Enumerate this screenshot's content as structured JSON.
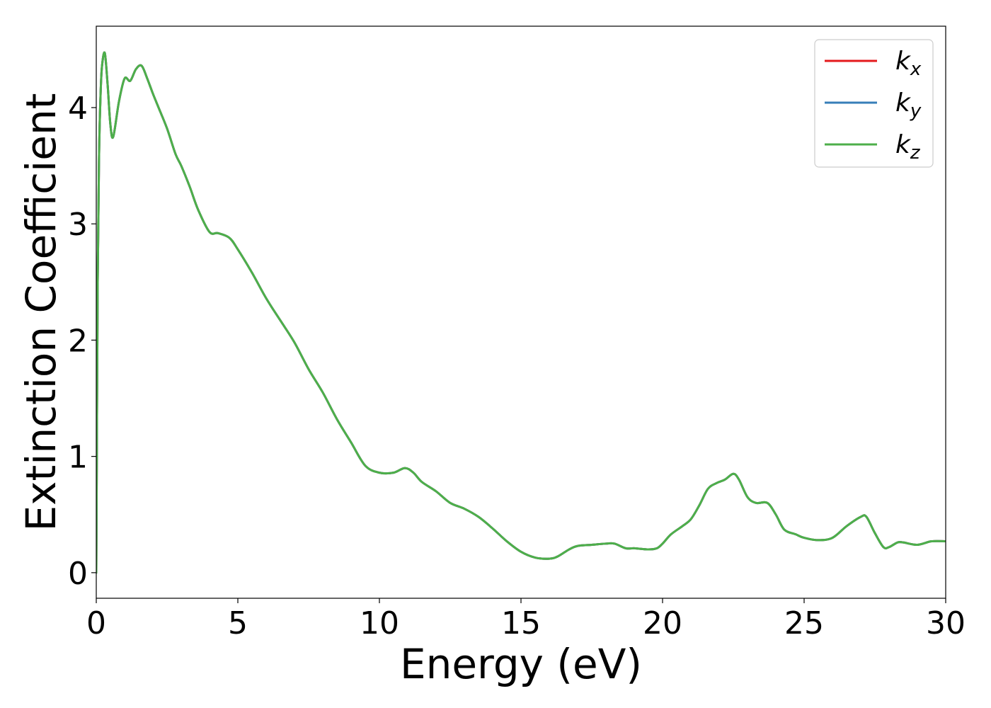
{
  "chart_data": {
    "type": "line",
    "title": "",
    "xlabel": "Energy (eV)",
    "ylabel": "Extinction Coefficient",
    "xlim": [
      0,
      30
    ],
    "ylim": [
      -0.22,
      4.7
    ],
    "xticks": [
      0,
      5,
      10,
      15,
      20,
      25,
      30
    ],
    "yticks": [
      0,
      1,
      2,
      3,
      4
    ],
    "grid": false,
    "legend_position": "top-right",
    "series": [
      {
        "name": "k",
        "subscript": "x",
        "color": "#e41a1c",
        "x": [
          0,
          0.05,
          0.1,
          0.15,
          0.2,
          0.3,
          0.4,
          0.5,
          0.6,
          0.8,
          1.0,
          1.2,
          1.4,
          1.6,
          1.8,
          2.0,
          2.2,
          2.5,
          2.8,
          3.0,
          3.3,
          3.6,
          4.0,
          4.3,
          4.7,
          5.0,
          5.5,
          6.0,
          6.5,
          7.0,
          7.5,
          8.0,
          8.5,
          9.0,
          9.5,
          10.0,
          10.5,
          10.9,
          11.2,
          11.5,
          12.0,
          12.5,
          13.0,
          13.5,
          14.0,
          14.5,
          15.0,
          15.5,
          16.0,
          16.3,
          16.7,
          17.0,
          17.5,
          18.0,
          18.3,
          18.7,
          19.0,
          19.5,
          19.8,
          20.0,
          20.3,
          20.7,
          21.0,
          21.3,
          21.6,
          21.9,
          22.2,
          22.5,
          22.7,
          23.0,
          23.3,
          23.7,
          24.0,
          24.3,
          24.7,
          25.0,
          25.5,
          26.0,
          26.5,
          27.0,
          27.2,
          27.5,
          27.8,
          28.0,
          28.3,
          28.5,
          29.0,
          29.5,
          30.0
        ],
        "y": [
          0.0,
          2.5,
          3.6,
          4.1,
          4.35,
          4.47,
          4.2,
          3.85,
          3.75,
          4.05,
          4.25,
          4.23,
          4.33,
          4.36,
          4.25,
          4.12,
          4.0,
          3.82,
          3.6,
          3.5,
          3.32,
          3.12,
          2.93,
          2.92,
          2.88,
          2.78,
          2.58,
          2.36,
          2.17,
          1.98,
          1.75,
          1.55,
          1.32,
          1.12,
          0.92,
          0.86,
          0.86,
          0.9,
          0.86,
          0.78,
          0.7,
          0.6,
          0.55,
          0.48,
          0.38,
          0.27,
          0.18,
          0.13,
          0.12,
          0.14,
          0.2,
          0.23,
          0.24,
          0.25,
          0.25,
          0.21,
          0.21,
          0.2,
          0.21,
          0.25,
          0.33,
          0.4,
          0.46,
          0.58,
          0.72,
          0.77,
          0.8,
          0.85,
          0.8,
          0.65,
          0.6,
          0.6,
          0.5,
          0.37,
          0.33,
          0.3,
          0.28,
          0.3,
          0.4,
          0.48,
          0.48,
          0.34,
          0.22,
          0.22,
          0.26,
          0.26,
          0.24,
          0.27,
          0.27
        ]
      },
      {
        "name": "k",
        "subscript": "y",
        "color": "#377eb8",
        "x": [
          0,
          0.05,
          0.1,
          0.15,
          0.2,
          0.3,
          0.4,
          0.5,
          0.6,
          0.8,
          1.0,
          1.2,
          1.4,
          1.6,
          1.8,
          2.0,
          2.2,
          2.5,
          2.8,
          3.0,
          3.3,
          3.6,
          4.0,
          4.3,
          4.7,
          5.0,
          5.5,
          6.0,
          6.5,
          7.0,
          7.5,
          8.0,
          8.5,
          9.0,
          9.5,
          10.0,
          10.5,
          10.9,
          11.2,
          11.5,
          12.0,
          12.5,
          13.0,
          13.5,
          14.0,
          14.5,
          15.0,
          15.5,
          16.0,
          16.3,
          16.7,
          17.0,
          17.5,
          18.0,
          18.3,
          18.7,
          19.0,
          19.5,
          19.8,
          20.0,
          20.3,
          20.7,
          21.0,
          21.3,
          21.6,
          21.9,
          22.2,
          22.5,
          22.7,
          23.0,
          23.3,
          23.7,
          24.0,
          24.3,
          24.7,
          25.0,
          25.5,
          26.0,
          26.5,
          27.0,
          27.2,
          27.5,
          27.8,
          28.0,
          28.3,
          28.5,
          29.0,
          29.5,
          30.0
        ],
        "y": [
          0.0,
          2.5,
          3.6,
          4.1,
          4.35,
          4.47,
          4.2,
          3.85,
          3.75,
          4.05,
          4.25,
          4.23,
          4.33,
          4.36,
          4.25,
          4.12,
          4.0,
          3.82,
          3.6,
          3.5,
          3.32,
          3.12,
          2.93,
          2.92,
          2.88,
          2.78,
          2.58,
          2.36,
          2.17,
          1.98,
          1.75,
          1.55,
          1.32,
          1.12,
          0.92,
          0.86,
          0.86,
          0.9,
          0.86,
          0.78,
          0.7,
          0.6,
          0.55,
          0.48,
          0.38,
          0.27,
          0.18,
          0.13,
          0.12,
          0.14,
          0.2,
          0.23,
          0.24,
          0.25,
          0.25,
          0.21,
          0.21,
          0.2,
          0.21,
          0.25,
          0.33,
          0.4,
          0.46,
          0.58,
          0.72,
          0.77,
          0.8,
          0.85,
          0.8,
          0.65,
          0.6,
          0.6,
          0.5,
          0.37,
          0.33,
          0.3,
          0.28,
          0.3,
          0.4,
          0.48,
          0.48,
          0.34,
          0.22,
          0.22,
          0.26,
          0.26,
          0.24,
          0.27,
          0.27
        ]
      },
      {
        "name": "k",
        "subscript": "z",
        "color": "#4daf4a",
        "x": [
          0,
          0.05,
          0.1,
          0.15,
          0.2,
          0.3,
          0.4,
          0.5,
          0.6,
          0.8,
          1.0,
          1.2,
          1.4,
          1.6,
          1.8,
          2.0,
          2.2,
          2.5,
          2.8,
          3.0,
          3.3,
          3.6,
          4.0,
          4.3,
          4.7,
          5.0,
          5.5,
          6.0,
          6.5,
          7.0,
          7.5,
          8.0,
          8.5,
          9.0,
          9.5,
          10.0,
          10.5,
          10.9,
          11.2,
          11.5,
          12.0,
          12.5,
          13.0,
          13.5,
          14.0,
          14.5,
          15.0,
          15.5,
          16.0,
          16.3,
          16.7,
          17.0,
          17.5,
          18.0,
          18.3,
          18.7,
          19.0,
          19.5,
          19.8,
          20.0,
          20.3,
          20.7,
          21.0,
          21.3,
          21.6,
          21.9,
          22.2,
          22.5,
          22.7,
          23.0,
          23.3,
          23.7,
          24.0,
          24.3,
          24.7,
          25.0,
          25.5,
          26.0,
          26.5,
          27.0,
          27.2,
          27.5,
          27.8,
          28.0,
          28.3,
          28.5,
          29.0,
          29.5,
          30.0
        ],
        "y": [
          0.0,
          2.5,
          3.6,
          4.1,
          4.35,
          4.47,
          4.2,
          3.85,
          3.75,
          4.05,
          4.25,
          4.23,
          4.33,
          4.36,
          4.25,
          4.12,
          4.0,
          3.82,
          3.6,
          3.5,
          3.32,
          3.12,
          2.93,
          2.92,
          2.88,
          2.78,
          2.58,
          2.36,
          2.17,
          1.98,
          1.75,
          1.55,
          1.32,
          1.12,
          0.92,
          0.86,
          0.86,
          0.9,
          0.86,
          0.78,
          0.7,
          0.6,
          0.55,
          0.48,
          0.38,
          0.27,
          0.18,
          0.13,
          0.12,
          0.14,
          0.2,
          0.23,
          0.24,
          0.25,
          0.25,
          0.21,
          0.21,
          0.2,
          0.21,
          0.25,
          0.33,
          0.4,
          0.46,
          0.58,
          0.72,
          0.77,
          0.8,
          0.85,
          0.8,
          0.65,
          0.6,
          0.6,
          0.5,
          0.37,
          0.33,
          0.3,
          0.28,
          0.3,
          0.4,
          0.48,
          0.48,
          0.34,
          0.22,
          0.22,
          0.26,
          0.26,
          0.24,
          0.27,
          0.27
        ]
      }
    ]
  }
}
